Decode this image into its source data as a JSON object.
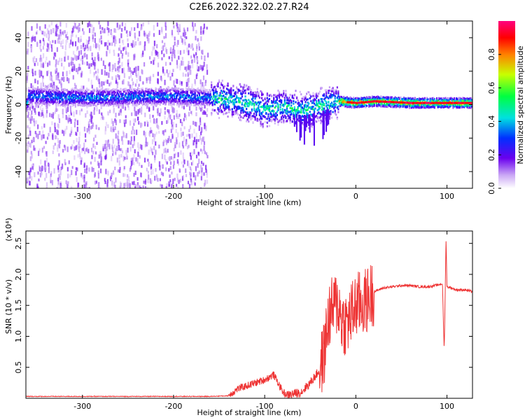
{
  "title": "C2E6.2022.322.02.27.R24",
  "chart_data": [
    {
      "type": "heatmap",
      "xlabel": "Height of straight line (km)",
      "ylabel": "Frequency (Hz)",
      "xlim": [
        -362,
        128
      ],
      "ylim": [
        -50,
        50
      ],
      "xticks": [
        -300,
        -200,
        -100,
        0,
        100
      ],
      "yticks": [
        -40,
        -20,
        0,
        20,
        40
      ],
      "colorbar": {
        "label": "Normalized spectral amplitude",
        "range": [
          0,
          1
        ],
        "ticks": [
          "0.0",
          "0.2",
          "0.4",
          "0.6",
          "0.8"
        ],
        "tick_values": [
          0.0,
          0.2,
          0.4,
          0.6,
          0.8
        ]
      },
      "band_centerline": {
        "x": [
          -360,
          -300,
          -200,
          -160,
          -140,
          -120,
          -100,
          -80,
          -60,
          -40,
          -20,
          0,
          20,
          60,
          100,
          128
        ],
        "y": [
          5,
          4,
          5,
          4,
          3,
          1,
          -3,
          -1,
          -4,
          -1,
          2,
          1,
          2,
          1,
          1,
          1
        ]
      }
    },
    {
      "type": "line",
      "xlabel": "Height of straight line (km)",
      "ylabel": "SNR (10 * v/v)",
      "multiplier_label": "(x10⁴)",
      "xlim": [
        -362,
        128
      ],
      "ylim": [
        0,
        2.7
      ],
      "xticks": [
        -300,
        -200,
        -100,
        0,
        100
      ],
      "yticks": [
        0.5,
        1.0,
        1.5,
        2.0,
        2.5
      ],
      "ytick_labels": [
        "0.5",
        "1.0",
        "1.5",
        "2.0",
        "2.5"
      ],
      "color": "#ee3333",
      "series": [
        {
          "x": [
            -362,
            -300,
            -200,
            -160,
            -140,
            -130,
            -120,
            -110,
            -100,
            -90,
            -80,
            -75,
            -60,
            -50,
            -40,
            -35,
            -30,
            -25,
            -20,
            -15,
            -10,
            -5,
            0,
            10,
            20,
            30,
            40,
            50,
            60,
            70,
            80,
            90,
            95,
            97,
            99,
            100,
            105,
            110,
            120,
            128
          ],
          "y": [
            0.03,
            0.03,
            0.03,
            0.03,
            0.04,
            0.15,
            0.2,
            0.25,
            0.3,
            0.38,
            0.1,
            0.05,
            0.1,
            0.25,
            0.45,
            0.7,
            1.3,
            1.45,
            1.55,
            1.25,
            1.2,
            1.35,
            1.5,
            1.55,
            1.72,
            1.78,
            1.8,
            1.82,
            1.82,
            1.8,
            1.8,
            1.83,
            1.85,
            0.75,
            2.6,
            1.8,
            1.78,
            1.75,
            1.75,
            1.72
          ]
        }
      ]
    }
  ]
}
